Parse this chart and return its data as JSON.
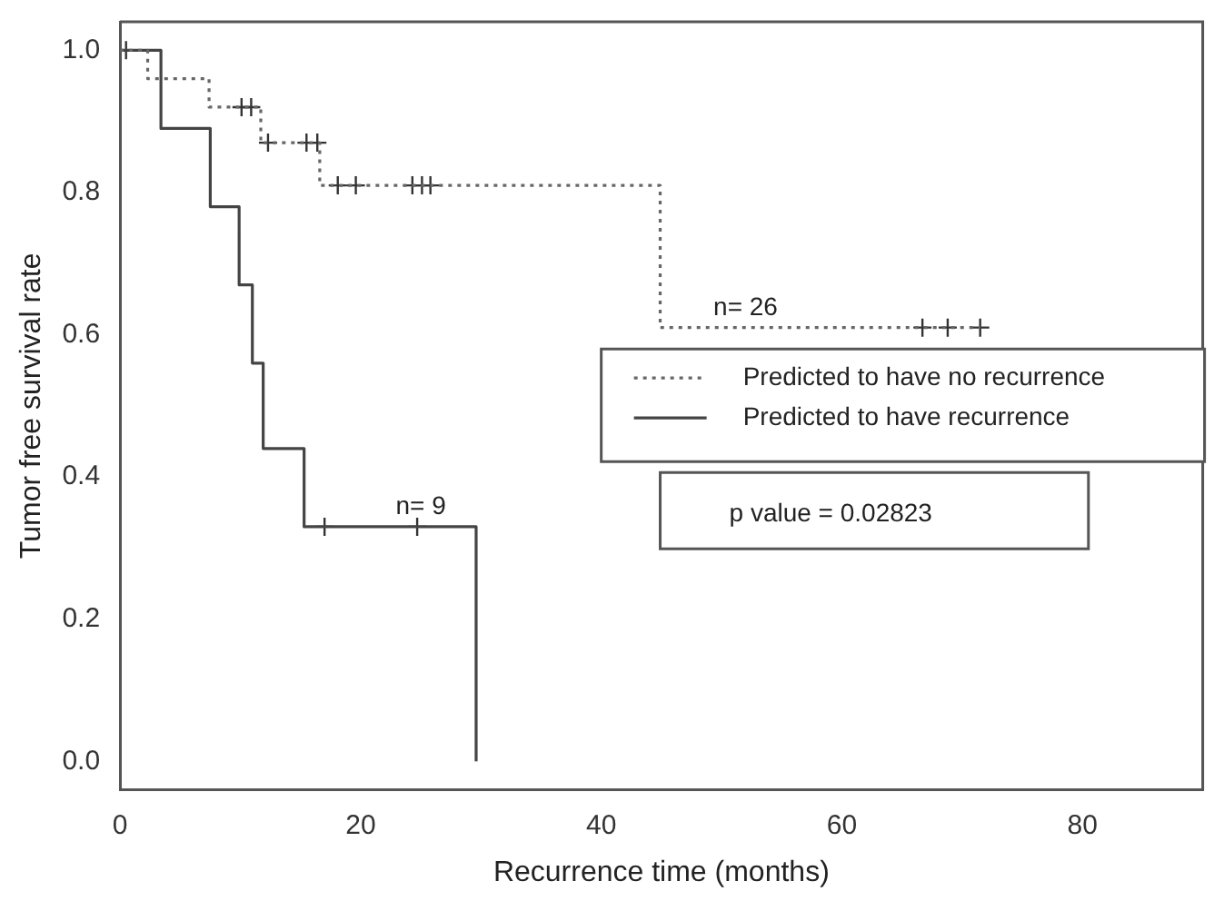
{
  "chart_data": {
    "type": "step",
    "xlabel": "Recurrence time (months)",
    "ylabel": "Tumor free survival rate",
    "xlim": [
      0,
      90
    ],
    "ylim": [
      -0.04,
      1.04
    ],
    "xticks": [
      0,
      20,
      40,
      60,
      80
    ],
    "yticks": [
      {
        "value": 0,
        "label": "0.0"
      },
      0.2,
      0.4,
      0.6,
      0.8,
      {
        "value": 1,
        "label": "1.0"
      }
    ],
    "legend": "right",
    "series": [
      {
        "name": "Predicted to have no recurrence",
        "color": "#666666",
        "line_style": "dotted",
        "marker": "none",
        "x": [
          0,
          2.3,
          7.4,
          11.7,
          16.6,
          44.9,
          71.5
        ],
        "values": [
          1,
          0.96,
          0.92,
          0.87,
          0.81,
          0.61,
          0.61
        ]
      },
      {
        "name": "Predicted to have recurrence",
        "color": "#444444",
        "line_style": "solid",
        "marker": "none",
        "x": [
          0,
          3.4,
          7.5,
          9.9,
          11,
          11.9,
          15.3,
          29.6
        ],
        "values": [
          1,
          0.89,
          0.78,
          0.67,
          0.56,
          0.44,
          0.33,
          0
        ]
      },
      {
        "type": "scatter",
        "color": "#333333",
        "marker": "cross",
        "x": [
          0.5,
          10.1,
          10.9,
          12.3,
          15.5,
          16.4,
          18.1,
          19.6,
          24.3,
          25.1,
          25.8,
          66.7,
          68.8,
          71.5
        ],
        "values": [
          1,
          0.92,
          0.92,
          0.87,
          0.87,
          0.87,
          0.81,
          0.81,
          0.81,
          0.81,
          0.81,
          0.61,
          0.61,
          0.61
        ]
      },
      {
        "type": "scatter",
        "color": "#333333",
        "marker": "cross",
        "x": [
          17,
          24.7
        ],
        "values": [
          0.33,
          0.33
        ]
      }
    ],
    "annotations": [
      {
        "text": "n= 26",
        "x": 52,
        "y": 0.61
      },
      {
        "text": "n= 9",
        "x": 25,
        "y": 0.33
      },
      "p value = 0.02823"
    ]
  }
}
